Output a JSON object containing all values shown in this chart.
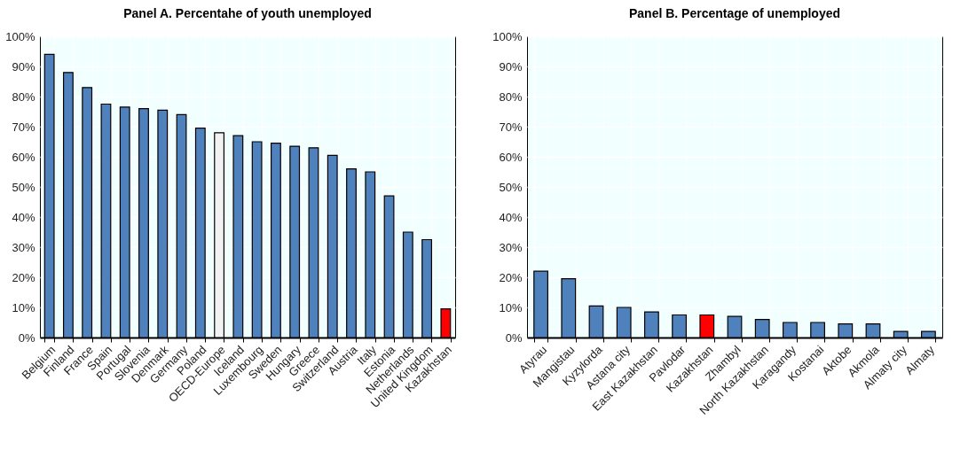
{
  "chart_data": [
    {
      "type": "bar",
      "title": "Panel A. Percentahe of youth unemployed",
      "categories": [
        "Belgium",
        "Finland",
        "France",
        "Spain",
        "Portugal",
        "Slovenia",
        "Denmark",
        "Germany",
        "Poland",
        "OECD-Europe",
        "Iceland",
        "Luxembourg",
        "Sweden",
        "Hungary",
        "Greece",
        "Switzerland",
        "Austria",
        "Italy",
        "Estonia",
        "Netherlands",
        "United Kingdom",
        "Kazakhstan"
      ],
      "values": [
        94,
        88,
        83,
        77.5,
        76.5,
        76,
        75.5,
        74,
        69.5,
        68,
        67,
        65,
        64.5,
        63.5,
        63,
        60.5,
        56,
        55,
        47,
        35,
        32.5,
        9.5
      ],
      "colors": [
        "#4f81bd",
        "#4f81bd",
        "#4f81bd",
        "#4f81bd",
        "#4f81bd",
        "#4f81bd",
        "#4f81bd",
        "#4f81bd",
        "#4f81bd",
        "#f2f2f2",
        "#4f81bd",
        "#4f81bd",
        "#4f81bd",
        "#4f81bd",
        "#4f81bd",
        "#4f81bd",
        "#4f81bd",
        "#4f81bd",
        "#4f81bd",
        "#4f81bd",
        "#4f81bd",
        "#ff0000"
      ],
      "ylim": [
        0,
        100
      ],
      "yticks": [
        {
          "value": 0,
          "label": "0%"
        },
        {
          "value": 10,
          "label": "10%"
        },
        {
          "value": 20,
          "label": "20%"
        },
        {
          "value": 30,
          "label": "30%"
        },
        {
          "value": 40,
          "label": "40%"
        },
        {
          "value": 50,
          "label": "50%"
        },
        {
          "value": 60,
          "label": "60%"
        },
        {
          "value": 70,
          "label": "70%"
        },
        {
          "value": 80,
          "label": "80%"
        },
        {
          "value": 90,
          "label": "90%"
        },
        {
          "value": 100,
          "label": "100%"
        }
      ],
      "grid": true
    },
    {
      "type": "bar",
      "title": "Panel B.  Percentage of unemployed",
      "categories": [
        "Atyrau",
        "Mangistau",
        "Kyzylorda",
        "Astana city",
        "East Kazakhstan",
        "Pavlodar",
        "Kazakhstan",
        "Zhambyl",
        "North Kazakhstan",
        "Karagandy",
        "Kostanai",
        "Aktobe",
        "Akmola",
        "Almaty city",
        "Almaty"
      ],
      "values": [
        22,
        19.5,
        10.5,
        10,
        8.5,
        7.5,
        7.5,
        7,
        6,
        5,
        5,
        4.5,
        4.5,
        2,
        2
      ],
      "colors": [
        "#4f81bd",
        "#4f81bd",
        "#4f81bd",
        "#4f81bd",
        "#4f81bd",
        "#4f81bd",
        "#ff0000",
        "#4f81bd",
        "#4f81bd",
        "#4f81bd",
        "#4f81bd",
        "#4f81bd",
        "#4f81bd",
        "#4f81bd",
        "#4f81bd"
      ],
      "ylim": [
        0,
        100
      ],
      "yticks": [
        {
          "value": 0,
          "label": "0%"
        },
        {
          "value": 10,
          "label": "10%"
        },
        {
          "value": 20,
          "label": "20%"
        },
        {
          "value": 30,
          "label": "30%"
        },
        {
          "value": 40,
          "label": "40%"
        },
        {
          "value": 50,
          "label": "50%"
        },
        {
          "value": 60,
          "label": "60%"
        },
        {
          "value": 70,
          "label": "70%"
        },
        {
          "value": 80,
          "label": "80%"
        },
        {
          "value": 90,
          "label": "90%"
        },
        {
          "value": 100,
          "label": "100%"
        }
      ],
      "grid": true
    }
  ]
}
